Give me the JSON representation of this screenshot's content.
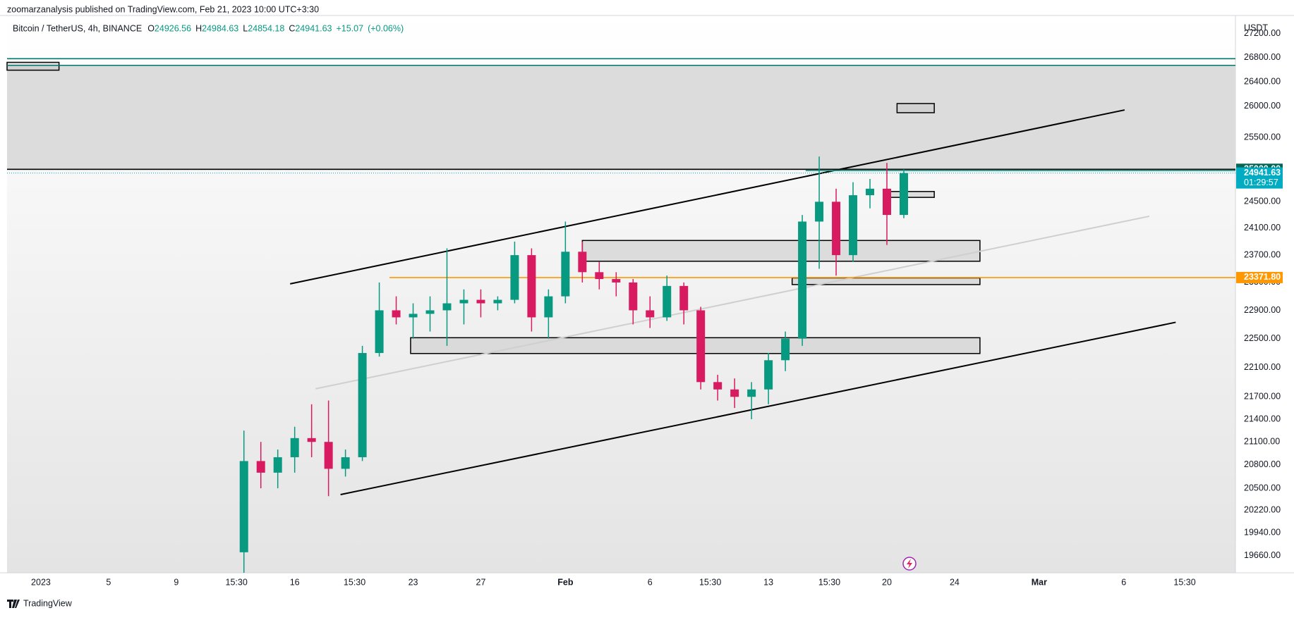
{
  "header": {
    "publisher": "zoomarzanalysis published on TradingView.com, Feb 21, 2023 10:00 UTC+3:30",
    "footer": "TradingView"
  },
  "chart_data": {
    "type": "candlestick",
    "title": "Bitcoin / TetherUS, 4h, BINANCE",
    "legend": [
      {
        "label": "O",
        "value": 24926.56
      },
      {
        "label": "H",
        "value": 24984.63
      },
      {
        "label": "L",
        "value": 24854.18
      },
      {
        "label": "C",
        "value": 24941.63
      }
    ],
    "change": "+15.07",
    "change_pct": "(+0.06%)",
    "currency": "USDT",
    "up_color": "#089981",
    "down_color": "#d81b60",
    "log_scale": true,
    "grid": false,
    "x": [
      12,
      13,
      14,
      15,
      16,
      17,
      18,
      19,
      20,
      21,
      22,
      23,
      24,
      25,
      26,
      27,
      28,
      29,
      30,
      31,
      32,
      33,
      34,
      35,
      36,
      37,
      38,
      39,
      40,
      41,
      42,
      43,
      44,
      45,
      46,
      47,
      48,
      49,
      50,
      51
    ],
    "open": [
      19700,
      20850,
      20700,
      20900,
      21150,
      21100,
      20750,
      20900,
      22300,
      22900,
      22800,
      22850,
      22900,
      23000,
      23050,
      23000,
      23050,
      23700,
      22800,
      23100,
      23750,
      23450,
      23350,
      23300,
      22900,
      22800,
      23250,
      22900,
      21900,
      21800,
      21700,
      21800,
      22200,
      22500,
      24200,
      24500,
      23700,
      24600,
      24700,
      24300
    ],
    "high": [
      21250,
      21100,
      21000,
      21300,
      21600,
      21650,
      21000,
      22400,
      23300,
      23100,
      23000,
      23100,
      23800,
      23200,
      23200,
      23100,
      23900,
      23800,
      23200,
      24200,
      23900,
      23600,
      23450,
      23350,
      23100,
      23400,
      23300,
      22950,
      22000,
      21950,
      21900,
      22300,
      22600,
      24300,
      25200,
      24700,
      24800,
      24850,
      25100,
      25000
    ],
    "low": [
      19450,
      20500,
      20500,
      20700,
      20900,
      20400,
      20650,
      20850,
      22250,
      22700,
      22500,
      22600,
      22400,
      22700,
      22800,
      22900,
      23000,
      22600,
      22500,
      23000,
      23300,
      23200,
      23100,
      22700,
      22650,
      22750,
      22700,
      21800,
      21650,
      21550,
      21400,
      21600,
      22050,
      22400,
      23500,
      23400,
      23600,
      24400,
      23850,
      24250
    ],
    "close": [
      20850,
      20700,
      20900,
      21150,
      21100,
      20750,
      20900,
      22300,
      22900,
      22800,
      22850,
      22900,
      23000,
      23050,
      23000,
      23050,
      23700,
      22800,
      23100,
      23750,
      23450,
      23350,
      23300,
      22900,
      22800,
      23250,
      22900,
      21900,
      21800,
      21700,
      21800,
      22200,
      22500,
      24200,
      24500,
      23700,
      24600,
      24700,
      24300,
      24941.63
    ],
    "xlim": [
      -2,
      70.6
    ],
    "xticks": [
      {
        "value": 0,
        "label": "2023"
      },
      {
        "value": 4,
        "label": "5"
      },
      {
        "value": 8,
        "label": "9"
      },
      {
        "value": 11.56,
        "label": "15:30"
      },
      {
        "value": 15,
        "label": "16"
      },
      {
        "value": 18.54,
        "label": "15:30"
      },
      {
        "value": 22,
        "label": "23"
      },
      {
        "value": 26,
        "label": "27"
      },
      {
        "value": 31,
        "label": "Feb"
      },
      {
        "value": 36,
        "label": "6"
      },
      {
        "value": 39.56,
        "label": "15:30"
      },
      {
        "value": 43,
        "label": "13"
      },
      {
        "value": 46.6,
        "label": "15:30"
      },
      {
        "value": 50,
        "label": "20"
      },
      {
        "value": 54,
        "label": "24"
      },
      {
        "value": 59,
        "label": "Mar"
      },
      {
        "value": 64,
        "label": "6"
      },
      {
        "value": 67.6,
        "label": "15:30"
      }
    ],
    "ylim": [
      19450,
      27510
    ],
    "yticks": [
      {
        "value": 27200,
        "label": "27200.00"
      },
      {
        "value": 26800,
        "label": "26800.00"
      },
      {
        "value": 26400,
        "label": "26400.00"
      },
      {
        "value": 26000,
        "label": "26000.00"
      },
      {
        "value": 25500,
        "label": "25500.00"
      },
      {
        "value": 24500,
        "label": "24500.00"
      },
      {
        "value": 24100,
        "label": "24100.00"
      },
      {
        "value": 23700,
        "label": "23700.00"
      },
      {
        "value": 23300,
        "label": "23300.00"
      },
      {
        "value": 22900,
        "label": "22900.00"
      },
      {
        "value": 22500,
        "label": "22500.00"
      },
      {
        "value": 22100,
        "label": "22100.00"
      },
      {
        "value": 21700,
        "label": "21700.00"
      },
      {
        "value": 21400,
        "label": "21400.00"
      },
      {
        "value": 21100,
        "label": "21100.00"
      },
      {
        "value": 20800,
        "label": "20800.00"
      },
      {
        "value": 20500,
        "label": "20500.00"
      },
      {
        "value": 20220,
        "label": "20220.00"
      },
      {
        "value": 19940,
        "label": "19940.00"
      },
      {
        "value": 19660,
        "label": "19660.00"
      }
    ],
    "price_markers": [
      {
        "value": 25000,
        "label": "25000.00",
        "color": "#056656"
      },
      {
        "value": 24941.63,
        "color": "#00acc1",
        "countdown": "01:29:57"
      },
      {
        "value": 23371.8,
        "label": "23371.80",
        "color": "#ff9800"
      }
    ],
    "horizontal_lines": [
      {
        "value": 26780,
        "color": "#00796b"
      },
      {
        "value": 26670,
        "color": "#00796b"
      },
      {
        "value": 25000,
        "color": "#000000"
      },
      {
        "value": 24980,
        "color": "#089981",
        "from": 45.2
      },
      {
        "value": 23371.8,
        "color": "#ff9800",
        "from": 20.6
      }
    ],
    "shaded_band": {
      "y": [
        25000,
        26670
      ],
      "color": "#dcdcdc"
    },
    "trend_lines": [
      {
        "x": [
          14.73,
          64.05
        ],
        "y": [
          23280,
          25940
        ],
        "color": "#000000"
      },
      {
        "x": [
          17.71,
          67.07
        ],
        "y": [
          20420,
          22730
        ],
        "color": "#000000"
      },
      {
        "x": [
          16.24,
          65.51
        ],
        "y": [
          21810,
          24280
        ],
        "color": "#cfcfcf"
      }
    ],
    "zones": [
      {
        "x": [
          -2,
          1.07
        ],
        "y": [
          26590,
          26720
        ]
      },
      {
        "x": [
          50.6,
          52.8
        ],
        "y": [
          25896,
          26044
        ]
      },
      {
        "x": [
          50.1,
          52.8
        ],
        "y": [
          24567,
          24657
        ]
      },
      {
        "x": [
          32,
          55.5
        ],
        "y": [
          23610,
          23917
        ]
      },
      {
        "x": [
          44.4,
          55.5
        ],
        "y": [
          23270,
          23366
        ]
      },
      {
        "x": [
          21.85,
          55.5
        ],
        "y": [
          22293,
          22513
        ]
      }
    ]
  }
}
